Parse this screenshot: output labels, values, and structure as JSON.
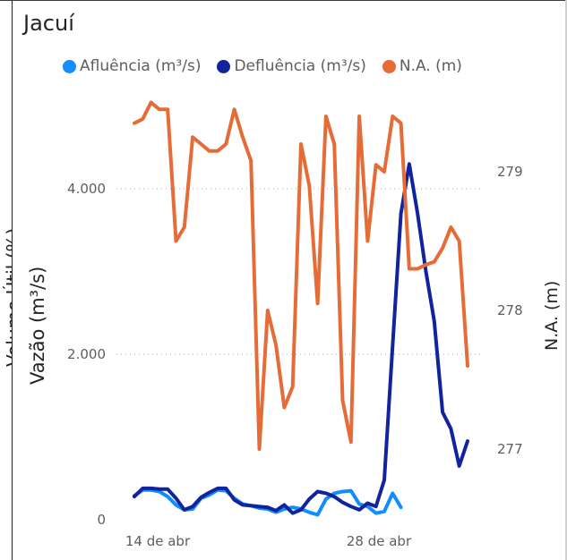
{
  "chart_data": {
    "type": "line",
    "title": "Jacuí",
    "left_axis_fragment": "Volume Útil (%)",
    "ylabel_left": "Vazão (m³/s)",
    "ylabel_right": "N.A. (m)",
    "x_ticks": [
      "14 de abr",
      "28 de abr"
    ],
    "y_left_ticks": [
      "0",
      "2.000",
      "4.000"
    ],
    "y_right_ticks": [
      "277",
      "278",
      "279"
    ],
    "ylim_left": [
      0,
      5000
    ],
    "ylim_right": [
      276.5,
      279.6
    ],
    "grid": "dotted horizontal",
    "legend_position": "top",
    "series": [
      {
        "name": "Afluência (m³/s)",
        "axis": "left",
        "color": "#118dff",
        "values": [
          290,
          360,
          360,
          340,
          280,
          180,
          120,
          130,
          260,
          300,
          360,
          350,
          260,
          190,
          170,
          140,
          130,
          90,
          130,
          150,
          130,
          90,
          60,
          250,
          320,
          340,
          350,
          190,
          160,
          80,
          100,
          320,
          150
        ]
      },
      {
        "name": "Defluência (m³/s)",
        "axis": "left",
        "color": "#12239e",
        "values": [
          280,
          380,
          380,
          370,
          370,
          260,
          120,
          160,
          270,
          330,
          380,
          380,
          240,
          180,
          170,
          160,
          150,
          110,
          180,
          80,
          120,
          250,
          340,
          320,
          280,
          210,
          160,
          120,
          200,
          160,
          480,
          2100,
          3700,
          4300,
          3700,
          3000,
          2400,
          1300,
          1100,
          650,
          950
        ]
      },
      {
        "name": "N.A. (m)",
        "axis": "right",
        "color": "#e66c37",
        "values": [
          279.35,
          279.38,
          279.5,
          279.45,
          279.45,
          278.5,
          278.6,
          279.25,
          279.2,
          279.15,
          279.15,
          279.2,
          279.45,
          279.25,
          279.08,
          277.0,
          278.0,
          277.75,
          277.3,
          277.45,
          279.2,
          278.9,
          278.05,
          279.4,
          279.2,
          277.35,
          277.05,
          279.4,
          278.5,
          279.05,
          279.0,
          279.4,
          279.35,
          278.3,
          278.3,
          278.33,
          278.35,
          278.45,
          278.6,
          278.5,
          277.6
        ]
      }
    ]
  }
}
